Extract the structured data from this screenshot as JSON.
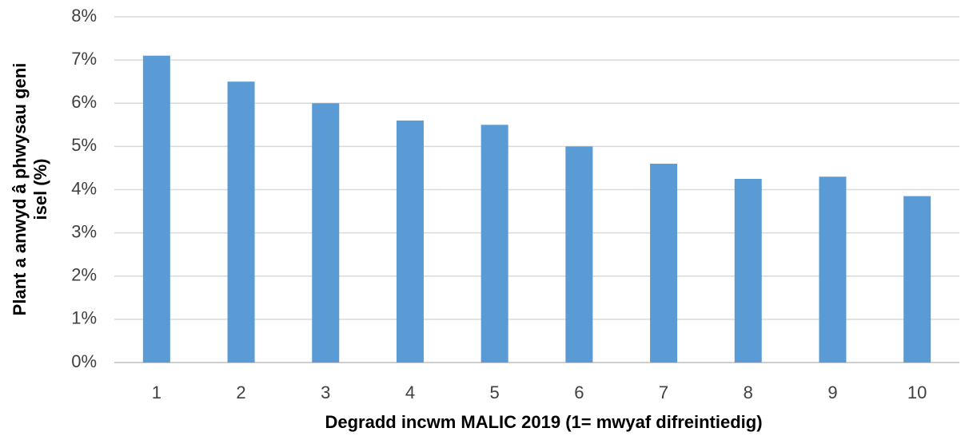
{
  "chart_data": {
    "type": "bar",
    "x_label": "Degradd incwm MALIC 2019 (1= mwyaf difreintiedig)",
    "y_label": [
      "Plant a anwyd â phwysau geni",
      "isel (%)"
    ],
    "categories": [
      "1",
      "2",
      "3",
      "4",
      "5",
      "6",
      "7",
      "8",
      "9",
      "10"
    ],
    "values": [
      7.1,
      6.5,
      6.0,
      5.6,
      5.5,
      5.0,
      4.6,
      4.25,
      4.3,
      3.85
    ],
    "color": "#5b9bd5",
    "ylim": [
      0,
      8
    ],
    "yticks": [
      {
        "value": 0,
        "label": "0%"
      },
      {
        "value": 1,
        "label": "1%"
      },
      {
        "value": 2,
        "label": "2%"
      },
      {
        "value": 3,
        "label": "3%"
      },
      {
        "value": 4,
        "label": "4%"
      },
      {
        "value": 5,
        "label": "5%"
      },
      {
        "value": 6,
        "label": "6%"
      },
      {
        "value": 7,
        "label": "7%"
      },
      {
        "value": 8,
        "label": "8%"
      }
    ],
    "grid": true
  }
}
